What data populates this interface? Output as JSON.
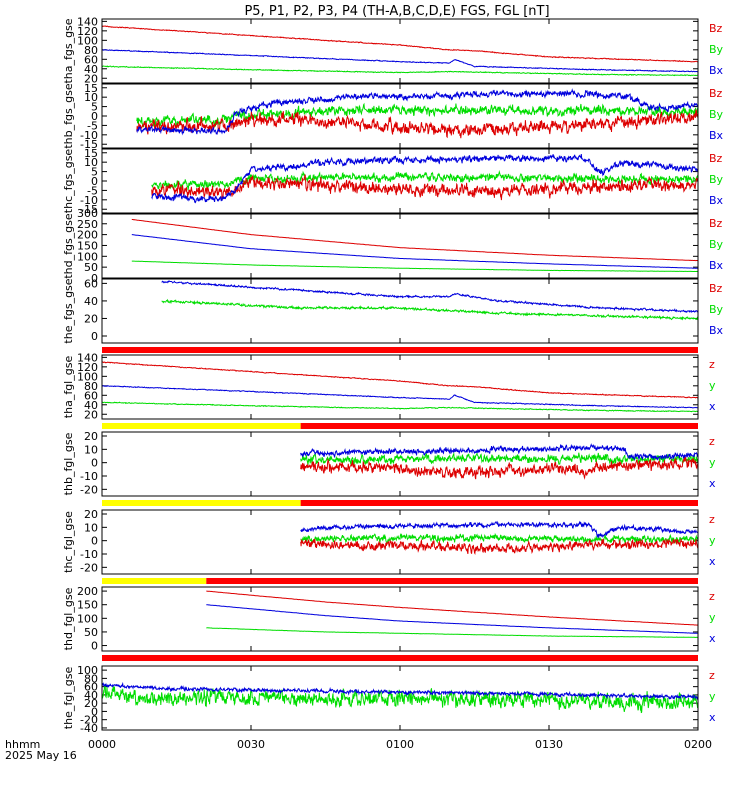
{
  "title": "P5, P1, P2, P3, P4 (TH-A,B,C,D,E) FGS, FGL [nT]",
  "footer": {
    "unit_label": "hhmm",
    "date_label": "2025 May 16"
  },
  "colors": {
    "x": "#0000dd",
    "y": "#00dd00",
    "z": "#dd0000",
    "red_bar": "#ff0000",
    "yellow_bar": "#ffff00"
  },
  "chart_data": {
    "type": "line",
    "x_axis": {
      "ticks": [
        "0000",
        "0030",
        "0100",
        "0130",
        "0200"
      ],
      "range_min": [
        0,
        120
      ]
    },
    "panels": [
      {
        "id": "tha_fgs_gse",
        "ylabel": "tha_fgs_gse",
        "ylim": [
          10,
          145
        ],
        "yticks": [
          "140",
          "120",
          "100",
          "80",
          "60",
          "40",
          "20"
        ],
        "legend": [
          "Bz",
          "By",
          "Bx"
        ],
        "x_start": 0,
        "noise": [
          1,
          1,
          1
        ],
        "status_bar": null,
        "series": {
          "x": [
            [
              0,
              80
            ],
            [
              30,
              68
            ],
            [
              60,
              55
            ],
            [
              70,
              52
            ],
            [
              71,
              60
            ],
            [
              75,
              45
            ],
            [
              100,
              38
            ],
            [
              120,
              34
            ]
          ],
          "y": [
            [
              0,
              45
            ],
            [
              30,
              38
            ],
            [
              60,
              32
            ],
            [
              70,
              34
            ],
            [
              100,
              28
            ],
            [
              120,
              26
            ]
          ],
          "z": [
            [
              0,
              130
            ],
            [
              30,
              110
            ],
            [
              60,
              90
            ],
            [
              70,
              80
            ],
            [
              75,
              78
            ],
            [
              90,
              65
            ],
            [
              120,
              55
            ]
          ]
        }
      },
      {
        "id": "thb_fgs_gse",
        "ylabel": "thb_fgs_gse",
        "ylim": [
          -17,
          17
        ],
        "yticks": [
          "15",
          "10",
          "5",
          "0",
          "-5",
          "-10",
          "-15"
        ],
        "legend": [
          "Bz",
          "By",
          "Bx"
        ],
        "x_start": 7,
        "noise": [
          2,
          3,
          4
        ],
        "status_bar": null,
        "series": {
          "x": [
            [
              7,
              -7
            ],
            [
              25,
              -8
            ],
            [
              27,
              2
            ],
            [
              35,
              7
            ],
            [
              50,
              10
            ],
            [
              70,
              11
            ],
            [
              95,
              12
            ],
            [
              105,
              11
            ],
            [
              112,
              4
            ],
            [
              115,
              5
            ],
            [
              120,
              6
            ]
          ],
          "y": [
            [
              7,
              -3
            ],
            [
              25,
              -2
            ],
            [
              27,
              0
            ],
            [
              45,
              3
            ],
            [
              70,
              3
            ],
            [
              100,
              3
            ],
            [
              120,
              2
            ]
          ],
          "z": [
            [
              7,
              -6
            ],
            [
              25,
              -5
            ],
            [
              30,
              -1
            ],
            [
              50,
              -4
            ],
            [
              70,
              -8
            ],
            [
              100,
              -4
            ],
            [
              120,
              0
            ]
          ]
        }
      },
      {
        "id": "thc_fgs_gse",
        "ylabel": "thc_fgs_gse",
        "ylim": [
          -17,
          17
        ],
        "yticks": [
          "15",
          "10",
          "5",
          "0",
          "-5",
          "-10",
          "-15"
        ],
        "legend": [
          "Bz",
          "By",
          "Bx"
        ],
        "x_start": 10,
        "noise": [
          2,
          2.5,
          4
        ],
        "status_bar": null,
        "series": {
          "x": [
            [
              10,
              -8
            ],
            [
              25,
              -10
            ],
            [
              30,
              6
            ],
            [
              40,
              8
            ],
            [
              45,
              10
            ],
            [
              60,
              11
            ],
            [
              80,
              12
            ],
            [
              98,
              12
            ],
            [
              100,
              4
            ],
            [
              105,
              10
            ],
            [
              120,
              6
            ]
          ],
          "y": [
            [
              10,
              -2
            ],
            [
              25,
              -2
            ],
            [
              30,
              1
            ],
            [
              50,
              2
            ],
            [
              80,
              2
            ],
            [
              100,
              1
            ],
            [
              120,
              1
            ]
          ],
          "z": [
            [
              10,
              -5
            ],
            [
              25,
              -6
            ],
            [
              30,
              -1
            ],
            [
              50,
              -3
            ],
            [
              80,
              -6
            ],
            [
              100,
              -3
            ],
            [
              120,
              -2
            ]
          ]
        }
      },
      {
        "id": "thd_fgs_gse",
        "ylabel": "thd_fgs_gse",
        "ylim": [
          0,
          295
        ],
        "yticks": [
          "300",
          "250",
          "200",
          "150",
          "100",
          "50",
          "0"
        ],
        "legend": [
          "Bz",
          "By",
          "Bx"
        ],
        "x_start": 6,
        "noise": [
          0.5,
          0.5,
          0.5
        ],
        "status_bar": null,
        "series": {
          "x": [
            [
              6,
              200
            ],
            [
              30,
              135
            ],
            [
              60,
              90
            ],
            [
              90,
              65
            ],
            [
              120,
              45
            ]
          ],
          "y": [
            [
              6,
              78
            ],
            [
              30,
              60
            ],
            [
              60,
              45
            ],
            [
              90,
              35
            ],
            [
              120,
              30
            ]
          ],
          "z": [
            [
              6,
              270
            ],
            [
              30,
              200
            ],
            [
              60,
              140
            ],
            [
              90,
              105
            ],
            [
              120,
              80
            ]
          ]
        }
      },
      {
        "id": "the_fgs_gse",
        "ylabel": "the_fgs_gse",
        "ylim": [
          -8,
          65
        ],
        "yticks": [
          "60",
          "40",
          "20",
          "0"
        ],
        "legend": [
          "Bz",
          "By",
          "Bx"
        ],
        "x_start": 12,
        "noise": [
          1.2,
          1.5,
          0
        ],
        "status_bar": "red",
        "series": {
          "x": [
            [
              12,
              62
            ],
            [
              40,
              52
            ],
            [
              60,
              45
            ],
            [
              70,
              45
            ],
            [
              71,
              48
            ],
            [
              80,
              40
            ],
            [
              100,
              32
            ],
            [
              120,
              28
            ]
          ],
          "y": [
            [
              12,
              40
            ],
            [
              40,
              32
            ],
            [
              60,
              32
            ],
            [
              80,
              26
            ],
            [
              120,
              20
            ]
          ],
          "z": []
        }
      },
      {
        "id": "tha_fgl_gse",
        "ylabel": "tha_fgl_gse",
        "ylim": [
          10,
          145
        ],
        "yticks": [
          "140",
          "120",
          "100",
          "80",
          "60",
          "40",
          "20"
        ],
        "legend": [
          "z",
          "y",
          "x"
        ],
        "x_start": 0,
        "noise": [
          1,
          1,
          1
        ],
        "status_bar": "yellow_red",
        "yellow_end": 40,
        "series": {
          "x": [
            [
              0,
              80
            ],
            [
              30,
              68
            ],
            [
              60,
              55
            ],
            [
              70,
              52
            ],
            [
              71,
              60
            ],
            [
              75,
              45
            ],
            [
              100,
              38
            ],
            [
              120,
              34
            ]
          ],
          "y": [
            [
              0,
              45
            ],
            [
              30,
              38
            ],
            [
              60,
              32
            ],
            [
              70,
              34
            ],
            [
              100,
              28
            ],
            [
              120,
              26
            ]
          ],
          "z": [
            [
              0,
              130
            ],
            [
              30,
              110
            ],
            [
              60,
              90
            ],
            [
              70,
              80
            ],
            [
              75,
              78
            ],
            [
              90,
              65
            ],
            [
              120,
              55
            ]
          ]
        }
      },
      {
        "id": "thb_fgl_gse",
        "ylabel": "thb_fgl_gse",
        "ylim": [
          -25,
          23
        ],
        "yticks": [
          "20",
          "10",
          "0",
          "-10",
          "-20"
        ],
        "legend": [
          "z",
          "y",
          "x"
        ],
        "x_start": 40,
        "noise": [
          2.5,
          3.5,
          5
        ],
        "status_bar": "yellow_red",
        "yellow_end": 40,
        "series": {
          "x": [
            [
              40,
              7
            ],
            [
              70,
              9
            ],
            [
              95,
              11
            ],
            [
              105,
              11
            ],
            [
              106,
              5
            ],
            [
              112,
              4
            ],
            [
              120,
              6
            ]
          ],
          "y": [
            [
              40,
              2
            ],
            [
              70,
              3
            ],
            [
              100,
              3
            ],
            [
              120,
              2
            ]
          ],
          "z": [
            [
              40,
              -3
            ],
            [
              60,
              -5
            ],
            [
              70,
              -8
            ],
            [
              100,
              -4
            ],
            [
              120,
              0
            ]
          ]
        }
      },
      {
        "id": "thc_fgl_gse",
        "ylabel": "thc_fgl_gse",
        "ylim": [
          -25,
          23
        ],
        "yticks": [
          "20",
          "10",
          "0",
          "-10",
          "-20"
        ],
        "legend": [
          "z",
          "y",
          "x"
        ],
        "x_start": 40,
        "noise": [
          2,
          3,
          4
        ],
        "status_bar": "yellow_red",
        "yellow_end": 21,
        "series": {
          "x": [
            [
              40,
              8
            ],
            [
              45,
              10
            ],
            [
              60,
              11
            ],
            [
              80,
              12
            ],
            [
              98,
              12
            ],
            [
              100,
              4
            ],
            [
              105,
              10
            ],
            [
              120,
              6
            ]
          ],
          "y": [
            [
              40,
              1
            ],
            [
              50,
              2
            ],
            [
              80,
              2
            ],
            [
              100,
              1
            ],
            [
              120,
              1
            ]
          ],
          "z": [
            [
              40,
              -2
            ],
            [
              50,
              -3
            ],
            [
              80,
              -6
            ],
            [
              100,
              -3
            ],
            [
              120,
              -2
            ]
          ]
        }
      },
      {
        "id": "thd_fgl_gse",
        "ylabel": "thd_fgl_gse",
        "ylim": [
          -20,
          215
        ],
        "yticks": [
          "200",
          "150",
          "100",
          "50",
          "0"
        ],
        "legend": [
          "z",
          "y",
          "x"
        ],
        "x_start": 21,
        "noise": [
          0.5,
          0.5,
          0.5
        ],
        "status_bar": "red",
        "series": {
          "x": [
            [
              21,
              150
            ],
            [
              45,
              110
            ],
            [
              60,
              90
            ],
            [
              90,
              65
            ],
            [
              120,
              45
            ]
          ],
          "y": [
            [
              21,
              65
            ],
            [
              45,
              50
            ],
            [
              60,
              45
            ],
            [
              90,
              35
            ],
            [
              120,
              30
            ]
          ],
          "z": [
            [
              21,
              200
            ],
            [
              45,
              160
            ],
            [
              60,
              140
            ],
            [
              90,
              105
            ],
            [
              120,
              75
            ]
          ]
        }
      },
      {
        "id": "the_fgl_gse",
        "ylabel": "the_fgl_gse",
        "ylim": [
          -45,
          110
        ],
        "yticks": [
          "100",
          "80",
          "60",
          "40",
          "20",
          "0",
          "-20",
          "-40"
        ],
        "legend": [
          "z",
          "y",
          "x"
        ],
        "x_start": 0,
        "noise": [
          5,
          22,
          0
        ],
        "status_bar": null,
        "series": {
          "x": [
            [
              0,
              65
            ],
            [
              12,
              55
            ],
            [
              40,
              50
            ],
            [
              70,
              45
            ],
            [
              120,
              35
            ]
          ],
          "y": [
            [
              0,
              40
            ],
            [
              12,
              35
            ],
            [
              70,
              30
            ],
            [
              120,
              20
            ]
          ],
          "z": []
        }
      }
    ]
  }
}
